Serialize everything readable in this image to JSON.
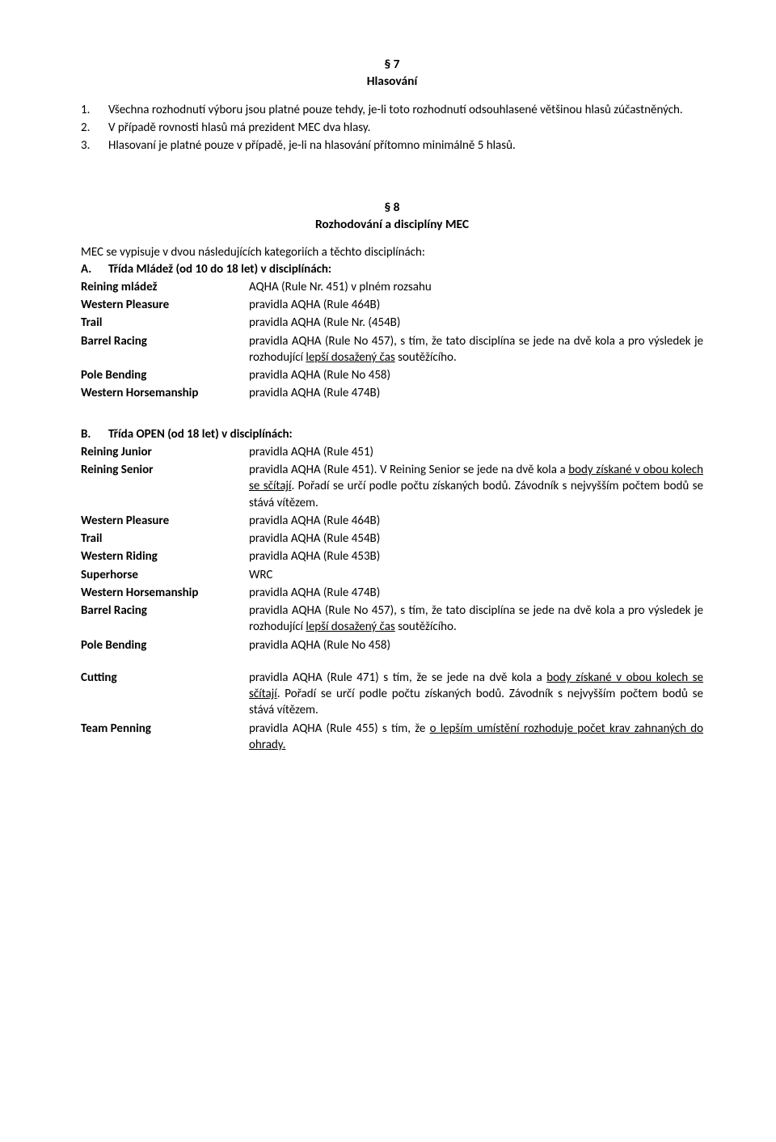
{
  "sec7": {
    "num": "§ 7",
    "title": "Hlasování",
    "items": [
      "Všechna rozhodnutí výboru jsou platné pouze tehdy, je-li toto rozhodnutí odsouhlasené většinou hlasů zúčastněných.",
      "V případě rovnosti hlasů má prezident MEC dva hlasy.",
      "Hlasovaní je platné pouze v případě, je-li na hlasování přítomno minimálně 5 hlasů."
    ],
    "markers": [
      "1.",
      "2.",
      "3."
    ]
  },
  "sec8": {
    "num": "§ 8",
    "title": "Rozhodování a disciplíny MEC",
    "intro": "MEC se vypisuje v dvou následujících kategoriích a těchto disciplínách:",
    "A": {
      "marker": "A.",
      "label": "Třída Mládež (od 10 do 18 let) v disciplínách:",
      "rows": [
        {
          "l": "Reining mládež",
          "r": "AQHA (Rule Nr. 451) v plném rozsahu",
          "lbold": true
        },
        {
          "l": "Western Pleasure",
          "r": "pravidla AQHA  (Rule 464B)",
          "lbold": true
        },
        {
          "l": "Trail",
          "r": "pravidla AQHA (Rule Nr. (454B)",
          "lbold": true,
          "trail_ital_l": true
        },
        {
          "l": "Barrel Racing",
          "r_parts": [
            {
              "t": "pravidla AQHA (Rule No 457), s tím, že tato disciplína se jede na dvě kola a pro výsledek je rozhodující "
            },
            {
              "t": "lepší dosažený čas",
              "u": true
            },
            {
              "t": " soutěžícího."
            }
          ],
          "lbold": true
        },
        {
          "l": "Pole Bending",
          "r": "pravidla AQHA (Rule No 458)",
          "lbold": true
        },
        {
          "l": "Western Horsemanship",
          "r": "pravidla AQHA (Rule 474B)",
          "lbold": true
        }
      ]
    },
    "B": {
      "marker": "B.",
      "label": "Třída OPEN (od 18 let) v disciplínách:",
      "rows": [
        {
          "l": "Reining Junior",
          "r": "pravidla AQHA (Rule 451)",
          "lbold": true
        },
        {
          "l": "Reining Senior",
          "r_parts": [
            {
              "t": "pravidla AQHA (Rule 451). V Reining Senior se jede na dvě kola a "
            },
            {
              "t": "body získané v obou kolech se sčítají",
              "u": true
            },
            {
              "t": ". Pořadí se určí podle počtu získaných bodů. Závodník s nejvyšším počtem bodů se stává vítězem."
            }
          ],
          "lbold": true
        },
        {
          "l": "Western Pleasure",
          "r": "pravidla AQHA (Rule 464B)",
          "lbold": true
        },
        {
          "l": "Trail",
          "r": "pravidla AQHA (Rule 454B)",
          "lbold": true
        },
        {
          "l": "Western Riding",
          "r": "pravidla AQHA (Rule 453B)",
          "lbold": true
        },
        {
          "l": "Superhorse",
          "r": "WRC",
          "lbold": true
        },
        {
          "l": "Western Horsemanship",
          "r": "pravidla AQHA (Rule 474B)",
          "lbold": true
        },
        {
          "l": "Barrel Racing",
          "r_parts": [
            {
              "t": "pravidla AQHA (Rule No 457), s tím, že tato disciplína se jede na dvě kola a pro výsledek je rozhodující "
            },
            {
              "t": "lepší dosažený čas",
              "u": true
            },
            {
              "t": " soutěžícího."
            }
          ],
          "lbold": true
        },
        {
          "l": "Pole Bending",
          "r": "pravidla AQHA (Rule No 458)",
          "lbold": true
        }
      ],
      "rows2": [
        {
          "l": "Cutting",
          "r_parts": [
            {
              "t": "pravidla AQHA (Rule 471) s tím, že se jede na dvě kola a "
            },
            {
              "t": "body získané v obou kolech se sčítají",
              "u": true
            },
            {
              "t": ". Pořadí se určí podle počtu získaných bodů. Závodník s nejvyšším počtem bodů se stává vítězem."
            }
          ],
          "lbold": true
        },
        {
          "l": "Team Penning",
          "r_parts": [
            {
              "t": "pravidla AQHA (Rule 455) s tím, že "
            },
            {
              "t": "o lepším umístění rozhoduje počet krav zahnaných do ohrady.",
              "u": true
            }
          ],
          "lbold": true
        }
      ]
    }
  }
}
